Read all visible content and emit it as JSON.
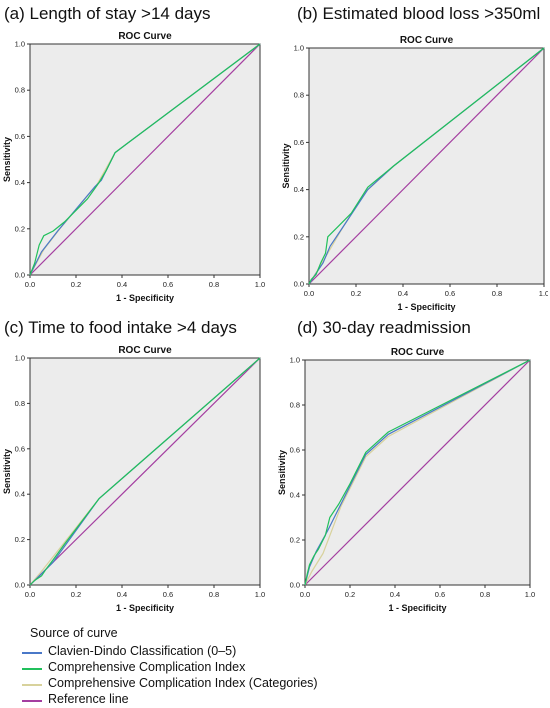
{
  "panels": [
    {
      "label": "(a) Length of stay >14 days"
    },
    {
      "label": "(b) Estimated blood loss >350ml"
    },
    {
      "label": "(c) Time to food intake >4 days"
    },
    {
      "label": "(d) 30-day readmission"
    }
  ],
  "legend": {
    "title": "Source of curve",
    "items": [
      {
        "label": "Clavien-Dindo Classification (0–5)",
        "color": "#4a78c8"
      },
      {
        "label": "Comprehensive Complication Index",
        "color": "#21c05c"
      },
      {
        "label": "Comprehensive Complication Index (Categories)",
        "color": "#d8d29c"
      },
      {
        "label": "Reference line",
        "color": "#a43ea0"
      }
    ]
  },
  "chart_data": [
    {
      "type": "line",
      "title": "ROC Curve",
      "xlabel": "1 - Specificity",
      "ylabel": "Sensitivity",
      "xlim": [
        0,
        1
      ],
      "ylim": [
        0,
        1
      ],
      "xticks": [
        "0.0",
        "0.2",
        "0.4",
        "0.6",
        "0.8",
        "1.0"
      ],
      "yticks": [
        "0.0",
        "0.2",
        "0.4",
        "0.6",
        "0.8",
        "1.0"
      ],
      "series": [
        {
          "name": "Clavien-Dindo Classification (0–5)",
          "color": "#4a78c8",
          "points": [
            [
              0,
              0
            ],
            [
              0.05,
              0.1
            ],
            [
              0.12,
              0.19
            ],
            [
              0.28,
              0.38
            ],
            [
              0.31,
              0.41
            ],
            [
              0.37,
              0.53
            ],
            [
              1,
              1
            ]
          ]
        },
        {
          "name": "Comprehensive Complication Index",
          "color": "#21c05c",
          "points": [
            [
              0,
              0
            ],
            [
              0.02,
              0.05
            ],
            [
              0.04,
              0.13
            ],
            [
              0.06,
              0.17
            ],
            [
              0.1,
              0.19
            ],
            [
              0.15,
              0.23
            ],
            [
              0.25,
              0.33
            ],
            [
              0.3,
              0.4
            ],
            [
              0.33,
              0.45
            ],
            [
              0.37,
              0.53
            ],
            [
              1,
              1
            ]
          ]
        },
        {
          "name": "Comprehensive Complication Index (Categories)",
          "color": "#d8d29c",
          "points": [
            [
              0,
              0
            ],
            [
              0.06,
              0.11
            ],
            [
              0.13,
              0.2
            ],
            [
              0.29,
              0.39
            ],
            [
              0.37,
              0.53
            ],
            [
              1,
              1
            ]
          ]
        },
        {
          "name": "Reference line",
          "color": "#a43ea0",
          "points": [
            [
              0,
              0
            ],
            [
              1,
              1
            ]
          ]
        }
      ]
    },
    {
      "type": "line",
      "title": "ROC Curve",
      "xlabel": "1 - Specificity",
      "ylabel": "Sensitivity",
      "xlim": [
        0,
        1
      ],
      "ylim": [
        0,
        1
      ],
      "xticks": [
        "0.0",
        "0.2",
        "0.4",
        "0.6",
        "0.8",
        "1.0"
      ],
      "yticks": [
        "0.0",
        "0.2",
        "0.4",
        "0.6",
        "0.8",
        "1.0"
      ],
      "series": [
        {
          "name": "Clavien-Dindo Classification (0–5)",
          "color": "#4a78c8",
          "points": [
            [
              0,
              0
            ],
            [
              0.02,
              0.03
            ],
            [
              0.06,
              0.09
            ],
            [
              0.09,
              0.16
            ],
            [
              0.15,
              0.25
            ],
            [
              0.25,
              0.4
            ],
            [
              0.36,
              0.5
            ],
            [
              1,
              1
            ]
          ]
        },
        {
          "name": "Comprehensive Complication Index",
          "color": "#21c05c",
          "points": [
            [
              0,
              0
            ],
            [
              0.01,
              0.02
            ],
            [
              0.03,
              0.04
            ],
            [
              0.05,
              0.09
            ],
            [
              0.07,
              0.13
            ],
            [
              0.08,
              0.2
            ],
            [
              0.12,
              0.24
            ],
            [
              0.18,
              0.3
            ],
            [
              0.25,
              0.41
            ],
            [
              0.36,
              0.5
            ],
            [
              1,
              1
            ]
          ]
        },
        {
          "name": "Comprehensive Complication Index (Categories)",
          "color": "#d8d29c",
          "points": [
            [
              0,
              0
            ],
            [
              0.05,
              0.08
            ],
            [
              0.15,
              0.25
            ],
            [
              0.24,
              0.39
            ],
            [
              0.36,
              0.5
            ],
            [
              1,
              1
            ]
          ]
        },
        {
          "name": "Reference line",
          "color": "#a43ea0",
          "points": [
            [
              0,
              0
            ],
            [
              1,
              1
            ]
          ]
        }
      ]
    },
    {
      "type": "line",
      "title": "ROC Curve",
      "xlabel": "1 - Specificity",
      "ylabel": "Sensitivity",
      "xlim": [
        0,
        1
      ],
      "ylim": [
        0,
        1
      ],
      "xticks": [
        "0.0",
        "0.2",
        "0.4",
        "0.6",
        "0.8",
        "1.0"
      ],
      "yticks": [
        "0.0",
        "0.2",
        "0.4",
        "0.6",
        "0.8",
        "1.0"
      ],
      "series": [
        {
          "name": "Clavien-Dindo Classification (0–5)",
          "color": "#4a78c8",
          "points": [
            [
              0,
              0
            ],
            [
              0.05,
              0.05
            ],
            [
              0.1,
              0.1
            ],
            [
              0.3,
              0.38
            ],
            [
              1,
              1
            ]
          ]
        },
        {
          "name": "Comprehensive Complication Index",
          "color": "#21c05c",
          "points": [
            [
              0,
              0
            ],
            [
              0.02,
              0.02
            ],
            [
              0.05,
              0.04
            ],
            [
              0.07,
              0.07
            ],
            [
              0.1,
              0.11
            ],
            [
              0.15,
              0.18
            ],
            [
              0.3,
              0.38
            ],
            [
              1,
              1
            ]
          ]
        },
        {
          "name": "Comprehensive Complication Index (Categories)",
          "color": "#d8d29c",
          "points": [
            [
              0,
              0
            ],
            [
              0.05,
              0.06
            ],
            [
              0.3,
              0.38
            ],
            [
              1,
              1
            ]
          ]
        },
        {
          "name": "Reference line",
          "color": "#a43ea0",
          "points": [
            [
              0,
              0
            ],
            [
              1,
              1
            ]
          ]
        }
      ]
    },
    {
      "type": "line",
      "title": "ROC Curve",
      "xlabel": "1 - Specificity",
      "ylabel": "Sensitivity",
      "xlim": [
        0,
        1
      ],
      "ylim": [
        0,
        1
      ],
      "xticks": [
        "0.0",
        "0.2",
        "0.4",
        "0.6",
        "0.8",
        "1.0"
      ],
      "yticks": [
        "0.0",
        "0.2",
        "0.4",
        "0.6",
        "0.8",
        "1.0"
      ],
      "series": [
        {
          "name": "Clavien-Dindo Classification (0–5)",
          "color": "#4a78c8",
          "points": [
            [
              0,
              0
            ],
            [
              0.02,
              0.08
            ],
            [
              0.05,
              0.15
            ],
            [
              0.1,
              0.24
            ],
            [
              0.18,
              0.4
            ],
            [
              0.27,
              0.58
            ],
            [
              0.37,
              0.67
            ],
            [
              1,
              1
            ]
          ]
        },
        {
          "name": "Comprehensive Complication Index",
          "color": "#21c05c",
          "points": [
            [
              0,
              0
            ],
            [
              0.01,
              0.05
            ],
            [
              0.02,
              0.09
            ],
            [
              0.04,
              0.13
            ],
            [
              0.06,
              0.16
            ],
            [
              0.09,
              0.22
            ],
            [
              0.11,
              0.3
            ],
            [
              0.15,
              0.36
            ],
            [
              0.2,
              0.45
            ],
            [
              0.27,
              0.59
            ],
            [
              0.37,
              0.68
            ],
            [
              1,
              1
            ]
          ]
        },
        {
          "name": "Comprehensive Complication Index (Categories)",
          "color": "#d8d29c",
          "points": [
            [
              0,
              0
            ],
            [
              0.03,
              0.06
            ],
            [
              0.08,
              0.14
            ],
            [
              0.16,
              0.35
            ],
            [
              0.27,
              0.57
            ],
            [
              0.37,
              0.66
            ],
            [
              1,
              1
            ]
          ]
        },
        {
          "name": "Reference line",
          "color": "#a43ea0",
          "points": [
            [
              0,
              0
            ],
            [
              1,
              1
            ]
          ]
        }
      ]
    }
  ]
}
